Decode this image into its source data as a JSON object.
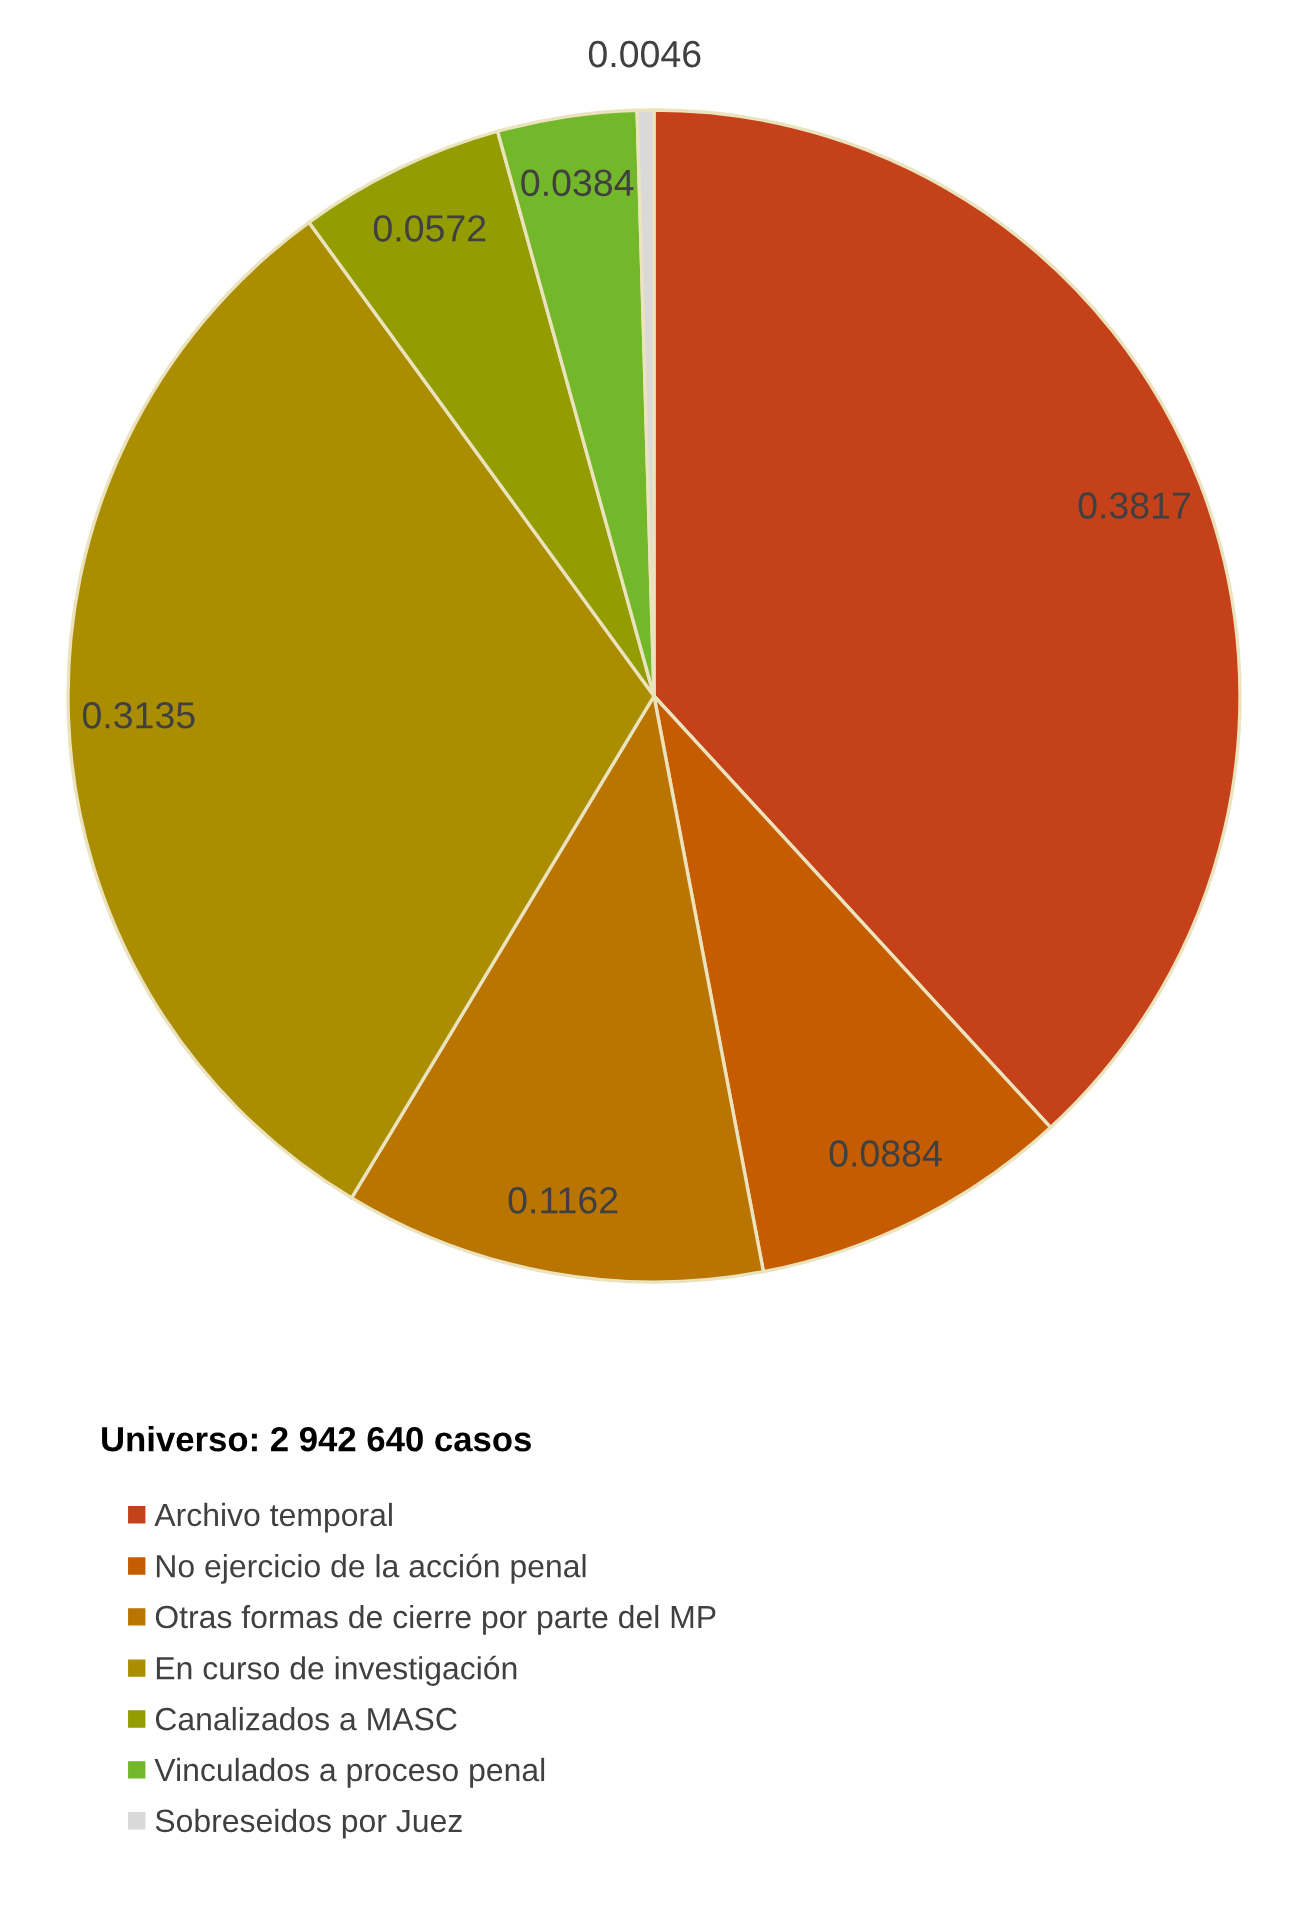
{
  "chart_data": {
    "type": "pie",
    "legend_title": "Universo: 2 942 640 casos",
    "categories": [
      "Archivo temporal",
      "No ejercicio de la acción penal",
      "Otras formas de cierre por parte del MP",
      "En curso de investigación",
      "Canalizados a MASC",
      "Vinculados a proceso penal",
      "Sobreseidos por Juez"
    ],
    "values": [
      0.3817,
      0.0884,
      0.1162,
      0.3135,
      0.0572,
      0.0384,
      0.0046
    ],
    "colors": [
      "#c54119",
      "#c55c00",
      "#ba7400",
      "#aa8e00",
      "#939c00",
      "#73b72b",
      "#d9d9d9"
    ],
    "data_labels": true,
    "legend": "bottom"
  }
}
